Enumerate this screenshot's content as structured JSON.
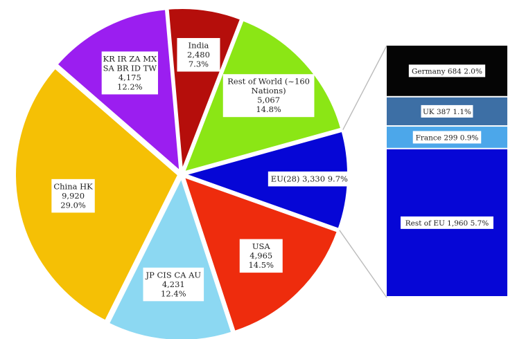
{
  "chart_data": [
    {
      "type": "pie",
      "slices": [
        {
          "lines": [
            "India",
            "2,480",
            "7.3%"
          ],
          "value": 2480,
          "percent": 7.3,
          "color": "#b50e0b"
        },
        {
          "lines": [
            "Rest of World (~160",
            "Nations)",
            "5,067",
            "14.8%"
          ],
          "value": 5067,
          "percent": 14.8,
          "color": "#8be615"
        },
        {
          "lines": [
            "EU(28) 3,330 9.7%"
          ],
          "value": 3330,
          "percent": 9.7,
          "color": "#0606d6"
        },
        {
          "lines": [
            "USA",
            "4,965",
            "14.5%"
          ],
          "value": 4965,
          "percent": 14.5,
          "color": "#ee2c0d"
        },
        {
          "lines": [
            "JP CIS CA AU",
            "4,231",
            "12.4%"
          ],
          "value": 4231,
          "percent": 12.4,
          "color": "#8cd8f2"
        },
        {
          "lines": [
            "China HK",
            "9,920",
            "29.0%"
          ],
          "value": 9920,
          "percent": 29.0,
          "color": "#f5c005"
        },
        {
          "lines": [
            "KR IR ZA MX",
            "SA BR ID TW",
            "4,175",
            "12.2%"
          ],
          "value": 4175,
          "percent": 12.2,
          "color": "#9b1ef0"
        }
      ]
    },
    {
      "type": "bar",
      "stacked": true,
      "segments": [
        {
          "label": "Germany  684 2.0%",
          "value": 684,
          "percent": 2.0,
          "color": "#050505"
        },
        {
          "label": "UK 387 1.1%",
          "value": 387,
          "percent": 1.1,
          "color": "#3d6fa5"
        },
        {
          "label": "France 299 0.9%",
          "value": 299,
          "percent": 0.9,
          "color": "#4ca7ea"
        },
        {
          "label": "Rest of EU 1,960 5.7%",
          "value": 1960,
          "percent": 5.7,
          "color": "#0606d6"
        }
      ]
    }
  ]
}
